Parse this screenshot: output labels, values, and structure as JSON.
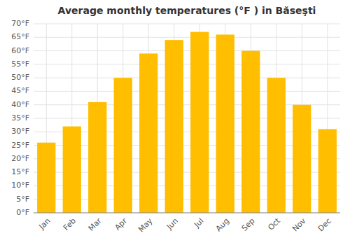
{
  "chart_data": {
    "type": "bar",
    "title": "Average monthly temperatures (°F ) in Băseşti",
    "categories": [
      "Jan",
      "Feb",
      "Mar",
      "Apr",
      "May",
      "Jun",
      "Jul",
      "Aug",
      "Sep",
      "Oct",
      "Nov",
      "Dec"
    ],
    "values": [
      26.0,
      32.0,
      41.0,
      50.0,
      59.0,
      64.0,
      67.0,
      66.0,
      60.0,
      50.0,
      40.0,
      31.0
    ],
    "color": "#FFBE00",
    "ylim": [
      0,
      70
    ],
    "yticks": [
      {
        "value": 0,
        "label": "0°F"
      },
      {
        "value": 5,
        "label": "5°F"
      },
      {
        "value": 10,
        "label": "10°F"
      },
      {
        "value": 15,
        "label": "15°F"
      },
      {
        "value": 20,
        "label": "20°F"
      },
      {
        "value": 25,
        "label": "25°F"
      },
      {
        "value": 30,
        "label": "30°F"
      },
      {
        "value": 35,
        "label": "35°F"
      },
      {
        "value": 40,
        "label": "40°F"
      },
      {
        "value": 45,
        "label": "45°F"
      },
      {
        "value": 50,
        "label": "50°F"
      },
      {
        "value": 55,
        "label": "55°F"
      },
      {
        "value": 60,
        "label": "60°F"
      },
      {
        "value": 65,
        "label": "65°F"
      },
      {
        "value": 70,
        "label": "70°F"
      }
    ],
    "grid": true
  }
}
